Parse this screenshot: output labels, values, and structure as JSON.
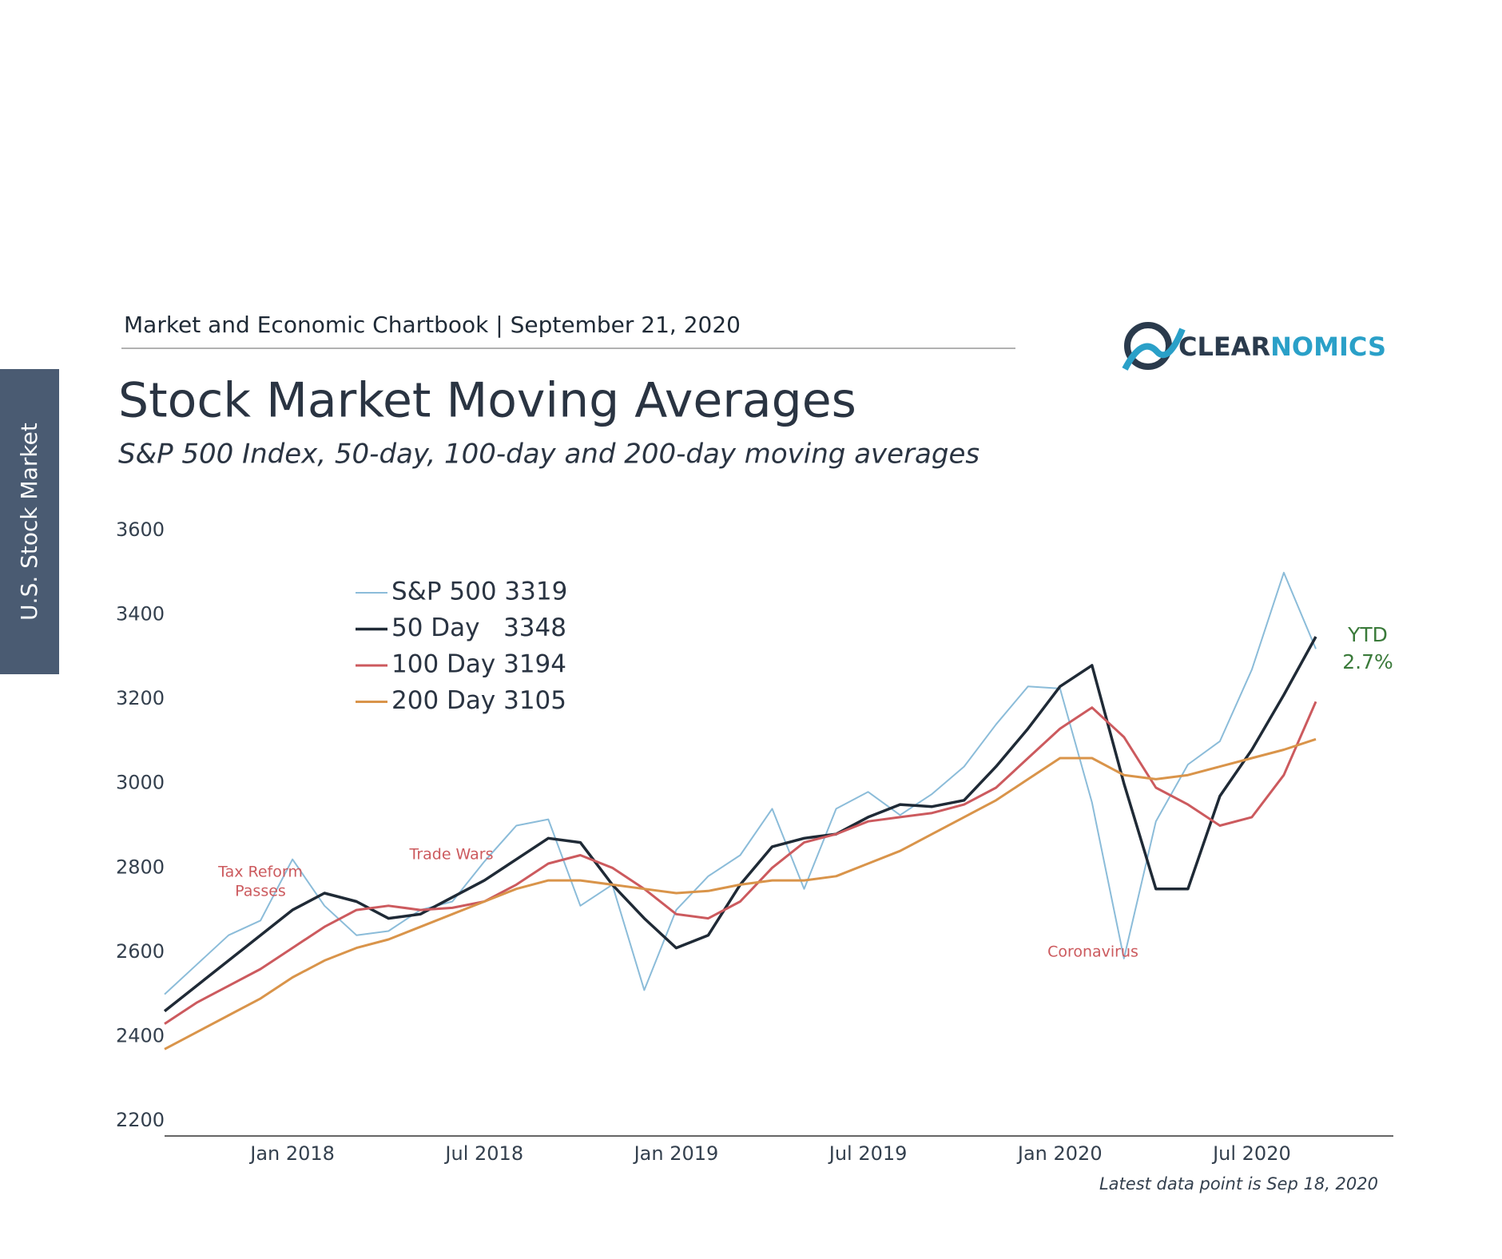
{
  "header": "Market and Economic Chartbook | September 21, 2020",
  "brand": {
    "part1": "CLEAR",
    "part2": "NOMICS"
  },
  "side_tab": "U.S. Stock Market",
  "footnote": "Latest data point is Sep 18, 2020",
  "chart_data": {
    "type": "line",
    "title": "Stock Market Moving Averages",
    "subtitle": "S&P 500 Index, 50-day, 100-day and 200-day moving averages",
    "x": [
      "2017-09",
      "2017-10",
      "2017-11",
      "2017-12",
      "2018-01",
      "2018-02",
      "2018-03",
      "2018-04",
      "2018-05",
      "2018-06",
      "2018-07",
      "2018-08",
      "2018-09",
      "2018-10",
      "2018-11",
      "2018-12",
      "2019-01",
      "2019-02",
      "2019-03",
      "2019-04",
      "2019-05",
      "2019-06",
      "2019-07",
      "2019-08",
      "2019-09",
      "2019-10",
      "2019-11",
      "2019-12",
      "2020-01",
      "2020-02",
      "2020-03",
      "2020-04",
      "2020-05",
      "2020-06",
      "2020-07",
      "2020-08",
      "2020-09"
    ],
    "series": [
      {
        "name": "S&P 500 3319",
        "color": "#8bbcd9",
        "width": 2,
        "values": [
          2500,
          2570,
          2640,
          2675,
          2820,
          2710,
          2640,
          2650,
          2700,
          2720,
          2815,
          2900,
          2915,
          2710,
          2760,
          2510,
          2700,
          2780,
          2830,
          2940,
          2750,
          2940,
          2980,
          2925,
          2975,
          3040,
          3140,
          3230,
          3225,
          2955,
          2585,
          2910,
          3045,
          3100,
          3270,
          3500,
          3319
        ]
      },
      {
        "name": "50 Day   3348",
        "color": "#1f2a36",
        "width": 3.5,
        "values": [
          2460,
          2520,
          2580,
          2640,
          2700,
          2740,
          2720,
          2680,
          2690,
          2730,
          2770,
          2820,
          2870,
          2860,
          2760,
          2680,
          2610,
          2640,
          2760,
          2850,
          2870,
          2880,
          2920,
          2950,
          2945,
          2960,
          3040,
          3130,
          3230,
          3280,
          3000,
          2750,
          2750,
          2970,
          3080,
          3210,
          3348
        ]
      },
      {
        "name": "100 Day 3194",
        "color": "#cc5a5e",
        "width": 3,
        "values": [
          2430,
          2480,
          2520,
          2560,
          2610,
          2660,
          2700,
          2710,
          2700,
          2705,
          2720,
          2760,
          2810,
          2830,
          2800,
          2750,
          2690,
          2680,
          2720,
          2800,
          2860,
          2880,
          2910,
          2920,
          2930,
          2950,
          2990,
          3060,
          3130,
          3180,
          3110,
          2990,
          2950,
          2900,
          2920,
          3020,
          3194
        ]
      },
      {
        "name": "200 Day 3105",
        "color": "#d9944a",
        "width": 3,
        "values": [
          2370,
          2410,
          2450,
          2490,
          2540,
          2580,
          2610,
          2630,
          2660,
          2690,
          2720,
          2750,
          2770,
          2770,
          2760,
          2750,
          2740,
          2745,
          2760,
          2770,
          2770,
          2780,
          2810,
          2840,
          2880,
          2920,
          2960,
          3010,
          3060,
          3060,
          3020,
          3010,
          3020,
          3040,
          3060,
          3080,
          3105
        ]
      }
    ],
    "xlim": [
      "2017-09",
      "2020-10"
    ],
    "xticks": [
      {
        "value": "2018-01",
        "label": "Jan 2018"
      },
      {
        "value": "2018-07",
        "label": "Jul 2018"
      },
      {
        "value": "2019-01",
        "label": "Jan 2019"
      },
      {
        "value": "2019-07",
        "label": "Jul 2019"
      },
      {
        "value": "2020-01",
        "label": "Jan 2020"
      },
      {
        "value": "2020-07",
        "label": "Jul 2020"
      }
    ],
    "ylim": [
      2200,
      3600
    ],
    "yticks": [
      2200,
      2400,
      2600,
      2800,
      3000,
      3200,
      3400,
      3600
    ],
    "grid": false,
    "annotations": [
      {
        "lines": [
          "Tax Reform",
          "Passes"
        ],
        "color": "#cc5a5e"
      },
      {
        "lines": [
          "Trade Wars"
        ],
        "color": "#cc5a5e"
      },
      {
        "lines": [
          "Coronavirus"
        ],
        "color": "#cc5a5e"
      },
      {
        "lines": [
          "YTD",
          "2.7%"
        ],
        "color": "#3a7a3a"
      }
    ]
  }
}
